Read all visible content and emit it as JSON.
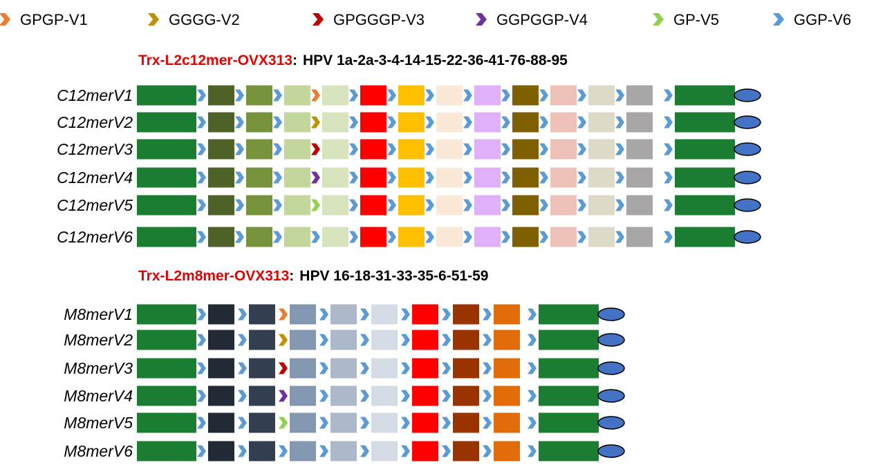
{
  "colors": {
    "V1": "#ed7d31",
    "V2": "#bf9000",
    "V3": "#c00000",
    "V4": "#7030a0",
    "V5": "#92d050",
    "V6": "#5b9bd5",
    "trx": "#1a7d32",
    "tag": "#4472c4"
  },
  "legend": [
    {
      "key": "V1",
      "label": "GPGP-V1"
    },
    {
      "key": "V2",
      "label": "GGGG-V2"
    },
    {
      "key": "V3",
      "label": "GPGGGP-V3"
    },
    {
      "key": "V4",
      "label": "GGPGGP-V4"
    },
    {
      "key": "V5",
      "label": "GP-V5"
    },
    {
      "key": "V6",
      "label": "GGP-V6"
    }
  ],
  "constructs": [
    {
      "name": "Trx-L2c12mer-OVX313",
      "name_suffix": ":",
      "hpv": "HPV 1a-2a-3-4-14-15-22-36-41-76-88-95",
      "rows": [
        "C12merV1",
        "C12merV2",
        "C12merV3",
        "C12merV4",
        "C12merV5",
        "C12merV6"
      ],
      "segments": [
        "#4f6228",
        "#77933c",
        "#c3d69b",
        "#d7e4bd",
        "#ff0000",
        "#ffc000",
        "#fbe9d7",
        "#e0b1fa",
        "#7f6000",
        "#efc2b9",
        "#dddac8",
        "#a9a6a8"
      ],
      "variable_after": 3
    },
    {
      "name": "Trx-L2m8mer-OVX313",
      "name_suffix": ":",
      "hpv": "HPV 16-18-31-33-35-6-51-59",
      "rows": [
        "M8merV1",
        "M8merV2",
        "M8merV3",
        "M8merV4",
        "M8merV5",
        "M8merV6"
      ],
      "segments": [
        "#222a35",
        "#333f50",
        "#8497b0",
        "#adb9ca",
        "#d6dce5",
        "#ff0000",
        "#993300",
        "#e26b0a"
      ],
      "variable_after": 2
    }
  ]
}
